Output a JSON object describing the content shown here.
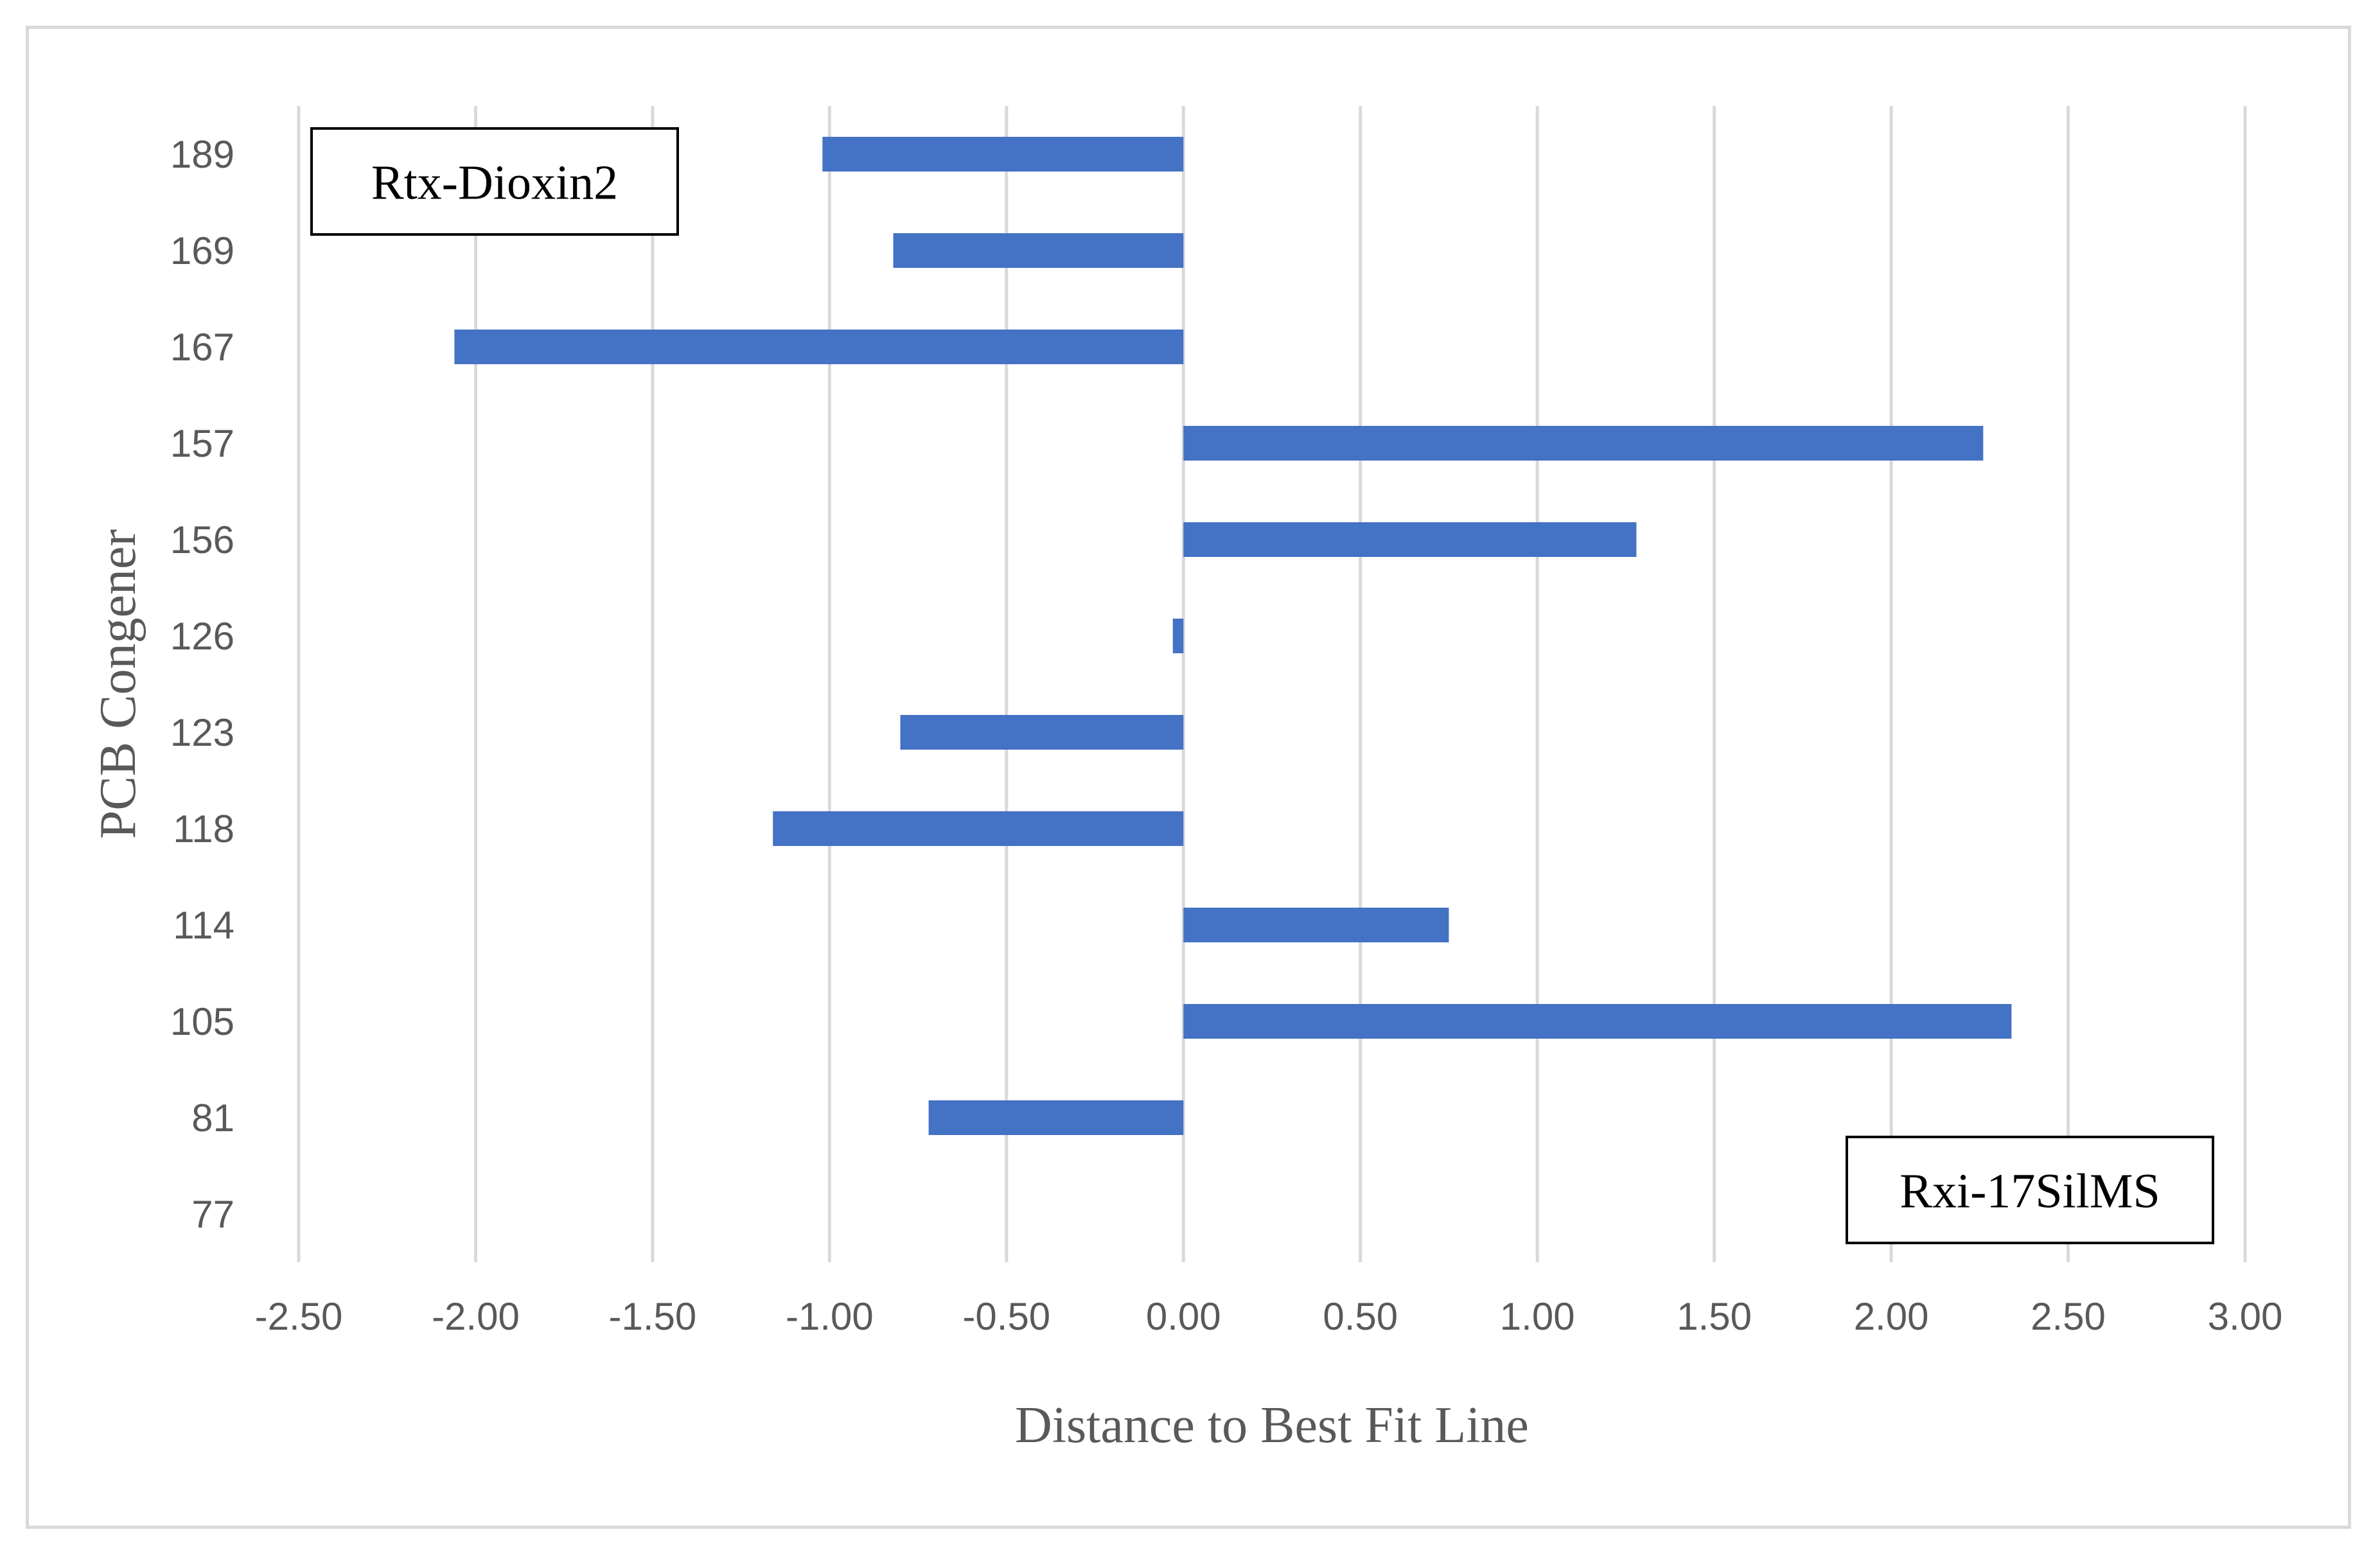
{
  "chart_data": {
    "type": "bar",
    "orientation": "horizontal",
    "categories": [
      "77",
      "81",
      "105",
      "114",
      "118",
      "123",
      "126",
      "156",
      "157",
      "167",
      "169",
      "189"
    ],
    "values": [
      0,
      -0.72,
      2.34,
      0.75,
      -1.16,
      -0.8,
      -0.03,
      1.28,
      2.26,
      -2.06,
      -0.82,
      -1.02
    ],
    "xlabel": "Distance to Best Fit Line",
    "ylabel": "PCB Congener",
    "xlim": [
      -2.5,
      3.0
    ],
    "xticks": [
      "-2.50",
      "-2.00",
      "-1.50",
      "-1.00",
      "-0.50",
      "0.00",
      "0.50",
      "1.00",
      "1.50",
      "2.00",
      "2.50",
      "3.00"
    ],
    "grid": "vertical",
    "legend": "none",
    "colors": {
      "bar": "#4472c4",
      "grid": "#d9d9d9",
      "text": "#595959",
      "frame": "#d9d9d9"
    },
    "annotations": [
      {
        "text": "Rtx-Dioxin2",
        "position": "top-left"
      },
      {
        "text": "Rxi-17SilMS",
        "position": "bottom-right"
      }
    ]
  }
}
